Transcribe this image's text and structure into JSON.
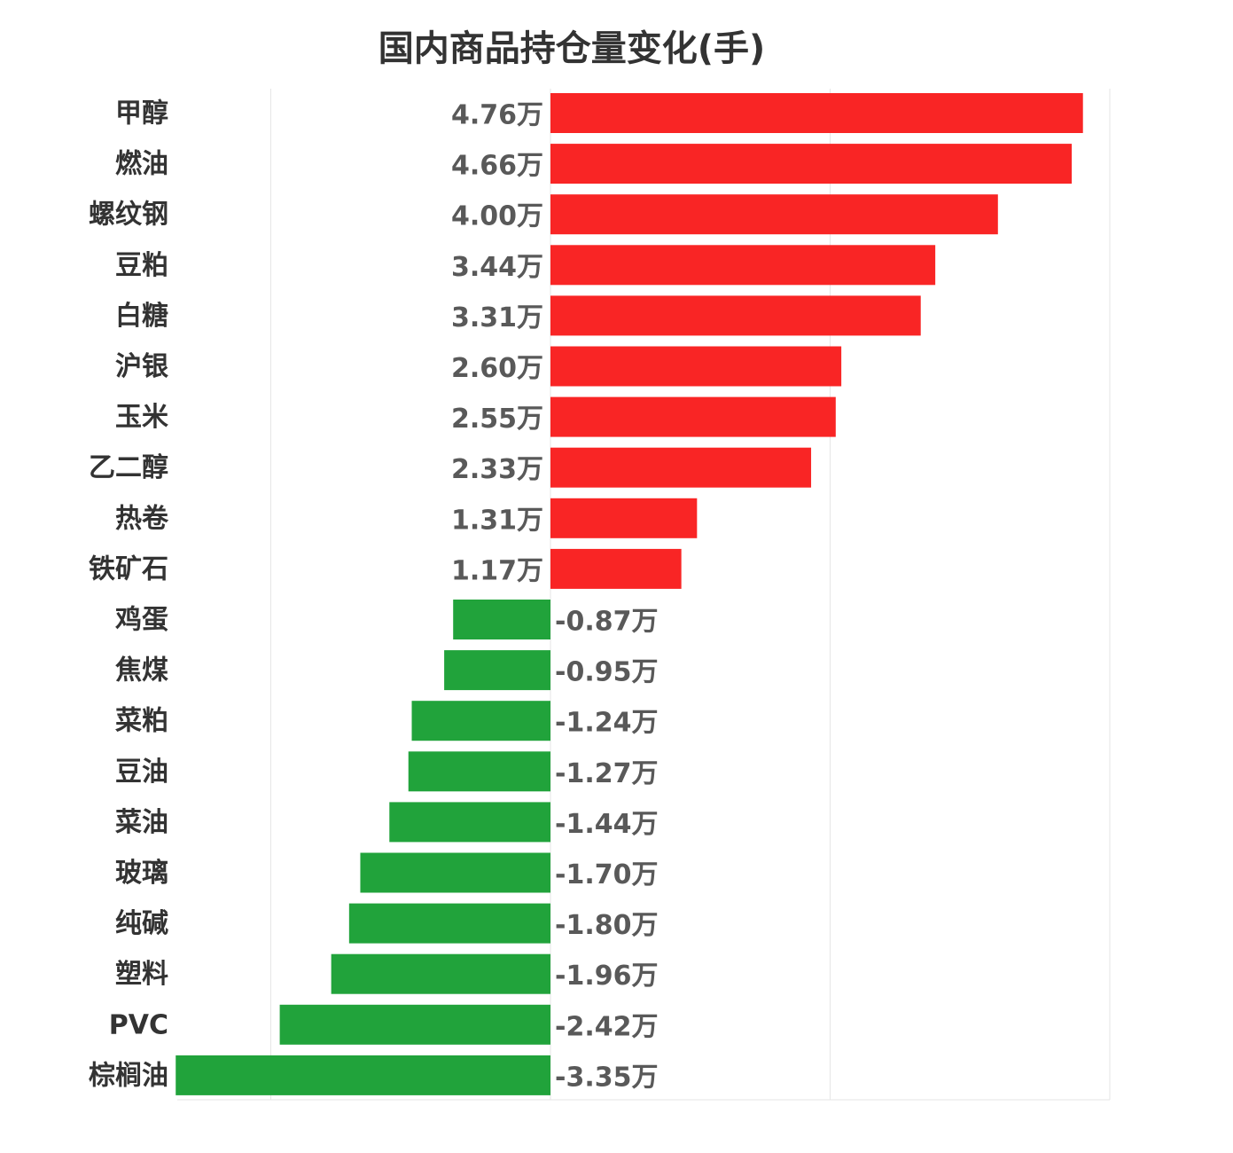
{
  "chart_data": {
    "type": "bar",
    "orientation": "horizontal",
    "title": "国内商品持仓量变化(手)",
    "xlabel": "",
    "ylabel": "",
    "unit_suffix": "万",
    "xlim": [
      -5,
      5
    ],
    "grid": true,
    "legend": "none",
    "colors": {
      "positive": "#f92525",
      "negative": "#21a33b",
      "grid": "#e6e6e6",
      "category_text": "#333333",
      "value_text": "#595959"
    },
    "categories": [
      "甲醇",
      "燃油",
      "螺纹钢",
      "豆粕",
      "白糖",
      "沪银",
      "玉米",
      "乙二醇",
      "热卷",
      "铁矿石",
      "鸡蛋",
      "焦煤",
      "菜粕",
      "豆油",
      "菜油",
      "玻璃",
      "纯碱",
      "塑料",
      "PVC",
      "棕榈油"
    ],
    "values": [
      4.76,
      4.66,
      4.0,
      3.44,
      3.31,
      2.6,
      2.55,
      2.33,
      1.31,
      1.17,
      -0.87,
      -0.95,
      -1.24,
      -1.27,
      -1.44,
      -1.7,
      -1.8,
      -1.96,
      -2.42,
      -3.35
    ],
    "value_labels": [
      "4.76万",
      "4.66万",
      "4.00万",
      "3.44万",
      "3.31万",
      "2.60万",
      "2.55万",
      "2.33万",
      "1.31万",
      "1.17万",
      "-0.87万",
      "-0.95万",
      "-1.24万",
      "-1.27万",
      "-1.44万",
      "-1.70万",
      "-1.80万",
      "-1.96万",
      "-2.42万",
      "-3.35万"
    ]
  }
}
